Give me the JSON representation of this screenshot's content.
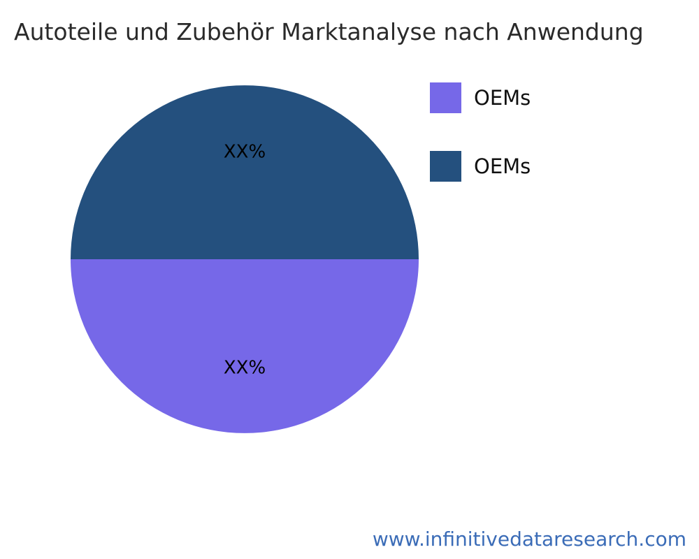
{
  "title": "Autoteile und Zubehör Marktanalyse nach Anwendung",
  "footer": {
    "url": "www.infinitivedataresearch.com",
    "color": "#3b6cb7"
  },
  "chart_data": {
    "type": "pie",
    "title": "Autoteile und Zubehör Marktanalyse nach Anwendung",
    "slices": [
      {
        "label": "OEMs",
        "value": 50,
        "display_label": "XX%",
        "color": "#7668e8"
      },
      {
        "label": "OEMs",
        "value": 50,
        "display_label": "XX%",
        "color": "#24507e"
      }
    ],
    "start_angle_deg": 0,
    "direction": "clockwise",
    "legend_position": "right",
    "slice_label_color": "#000000",
    "background_color": "#ffffff"
  }
}
